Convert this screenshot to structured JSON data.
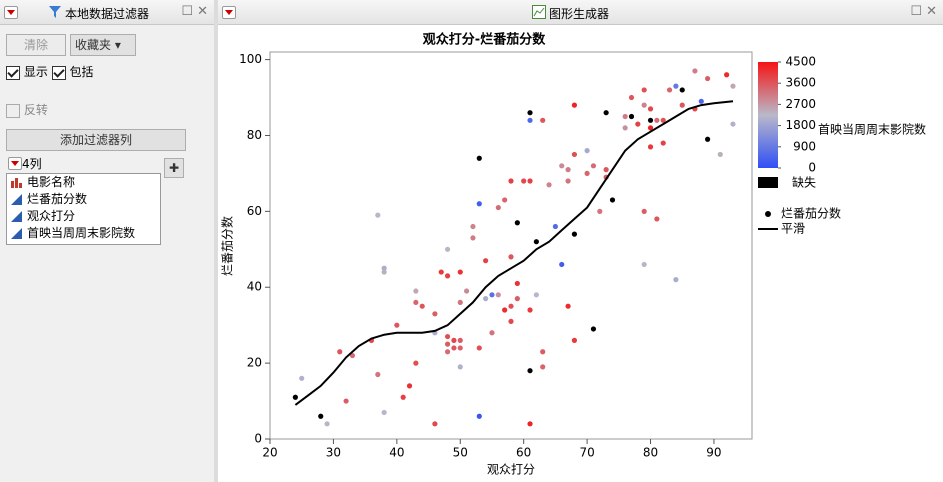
{
  "filter_panel": {
    "title": "本地数据过滤器",
    "clear": "清除",
    "favorites": "收藏夹",
    "show": "显示",
    "include": "包括",
    "invert": "反转",
    "add_filter": "添加过滤器列",
    "columns_count": "4列",
    "columns": [
      "电影名称",
      "烂番茄分数",
      "观众打分",
      "首映当周周末影院数"
    ]
  },
  "graph_panel": {
    "title": "图形生成器"
  },
  "chart_data": {
    "type": "scatter",
    "title": "观众打分-烂番茄分数",
    "x_label": "观众打分",
    "y_label": "烂番茄分数",
    "xlim": [
      20,
      96
    ],
    "xticks": [
      20,
      30,
      40,
      50,
      60,
      70,
      80,
      90
    ],
    "ylim": [
      0,
      102
    ],
    "yticks": [
      0,
      20,
      40,
      60,
      80,
      100
    ],
    "series": [
      {
        "name": "烂番茄分数",
        "color": "#000000",
        "x": [
          24,
          28,
          53,
          59,
          61,
          62,
          68,
          71,
          73,
          74,
          77,
          80,
          85,
          89,
          61,
          53,
          53,
          61,
          66,
          65,
          88,
          55,
          84,
          25,
          29,
          37,
          38,
          38,
          43,
          48,
          50,
          54,
          62,
          70,
          79,
          84,
          93,
          91,
          93,
          38,
          46,
          31,
          33,
          32,
          36,
          37,
          40,
          41,
          42,
          43,
          43,
          44,
          46,
          46,
          47,
          48,
          48,
          48,
          48,
          49,
          49,
          50,
          50,
          50,
          50,
          51,
          52,
          52,
          53,
          54,
          55,
          56,
          56,
          57,
          57,
          58,
          58,
          58,
          58,
          59,
          59,
          60,
          61,
          61,
          61,
          63,
          63,
          63,
          64,
          66,
          67,
          67,
          67,
          68,
          68,
          68,
          70,
          71,
          72,
          73,
          73,
          76,
          76,
          77,
          78,
          79,
          79,
          79,
          80,
          80,
          81,
          80,
          81,
          82,
          82,
          83,
          85,
          87,
          87,
          89,
          92
        ],
        "values": [
          11,
          6,
          74,
          57,
          18,
          52,
          54,
          29,
          86,
          63,
          85,
          84,
          92,
          79,
          86,
          6,
          62,
          84,
          46,
          56,
          89,
          38,
          93,
          16,
          4,
          59,
          45,
          44,
          39,
          50,
          19,
          37,
          38,
          76,
          46,
          42,
          83,
          75,
          93,
          7,
          28,
          23,
          22,
          10,
          26,
          17,
          30,
          11,
          14,
          20,
          36,
          35,
          4,
          33,
          44,
          43,
          27,
          25,
          23,
          24,
          26,
          36,
          44,
          26,
          24,
          39,
          53,
          56,
          24,
          47,
          28,
          38,
          61,
          34,
          63,
          48,
          31,
          35,
          68,
          41,
          37,
          68,
          4,
          34,
          68,
          23,
          84,
          19,
          67,
          72,
          71,
          35,
          68,
          75,
          26,
          88,
          70,
          72,
          60,
          69,
          71,
          82,
          85,
          90,
          83,
          88,
          92,
          60,
          77,
          82,
          84,
          87,
          58,
          84,
          78,
          92,
          88,
          97,
          87,
          95,
          96
        ],
        "color_values": [
          null,
          null,
          null,
          null,
          null,
          null,
          null,
          null,
          null,
          null,
          null,
          null,
          null,
          null,
          null,
          150,
          350,
          500,
          300,
          600,
          450,
          700,
          900,
          2100,
          2300,
          2200,
          2000,
          2400,
          2500,
          2300,
          2100,
          2000,
          2200,
          1900,
          2300,
          2000,
          2100,
          2400,
          2500,
          2200,
          2000,
          3600,
          3300,
          3500,
          3800,
          3200,
          3600,
          3900,
          4100,
          3700,
          3400,
          3600,
          3800,
          3500,
          4000,
          3900,
          3700,
          3500,
          3300,
          3600,
          3800,
          3200,
          4100,
          3500,
          3400,
          2900,
          3100,
          3000,
          3700,
          3900,
          3200,
          2800,
          3300,
          4200,
          3400,
          3600,
          3800,
          3700,
          3900,
          4100,
          3500,
          3800,
          4300,
          4000,
          3900,
          3500,
          3600,
          3400,
          3000,
          2900,
          3100,
          4200,
          3200,
          3700,
          4000,
          4300,
          3400,
          3300,
          3200,
          3500,
          3600,
          2800,
          3100,
          3600,
          3900,
          3000,
          3700,
          3500,
          4000,
          4300,
          3300,
          3800,
          3600,
          3700,
          3900,
          3400,
          3600,
          3100,
          3800,
          3500,
          4200
        ]
      },
      {
        "name": "平滑",
        "type": "line",
        "color": "#000000",
        "x": [
          24,
          26,
          28,
          30,
          32,
          34,
          36,
          38,
          40,
          42,
          44,
          46,
          48,
          50,
          52,
          54,
          56,
          58,
          60,
          62,
          64,
          66,
          68,
          70,
          72,
          74,
          76,
          78,
          80,
          82,
          84,
          86,
          88,
          90,
          93
        ],
        "values": [
          9,
          11.5,
          14,
          17.5,
          21.5,
          24.5,
          26.5,
          27.5,
          28,
          28,
          28,
          28.5,
          30,
          33,
          36,
          40,
          43,
          45,
          47,
          50,
          52,
          55,
          58,
          61,
          66,
          71,
          76,
          79,
          81,
          83,
          85,
          87,
          88,
          88.5,
          89
        ]
      }
    ],
    "colorbar": {
      "title": "首映当周周末影院数",
      "lim": [
        0,
        4500
      ],
      "ticks": [
        0,
        900,
        1800,
        2700,
        3600,
        4500
      ],
      "colors": [
        "#2f4ff5",
        "#b9b9c9",
        "#f51414"
      ],
      "missing_label": "缺失",
      "missing_color": "#000000"
    },
    "legend": "right"
  }
}
